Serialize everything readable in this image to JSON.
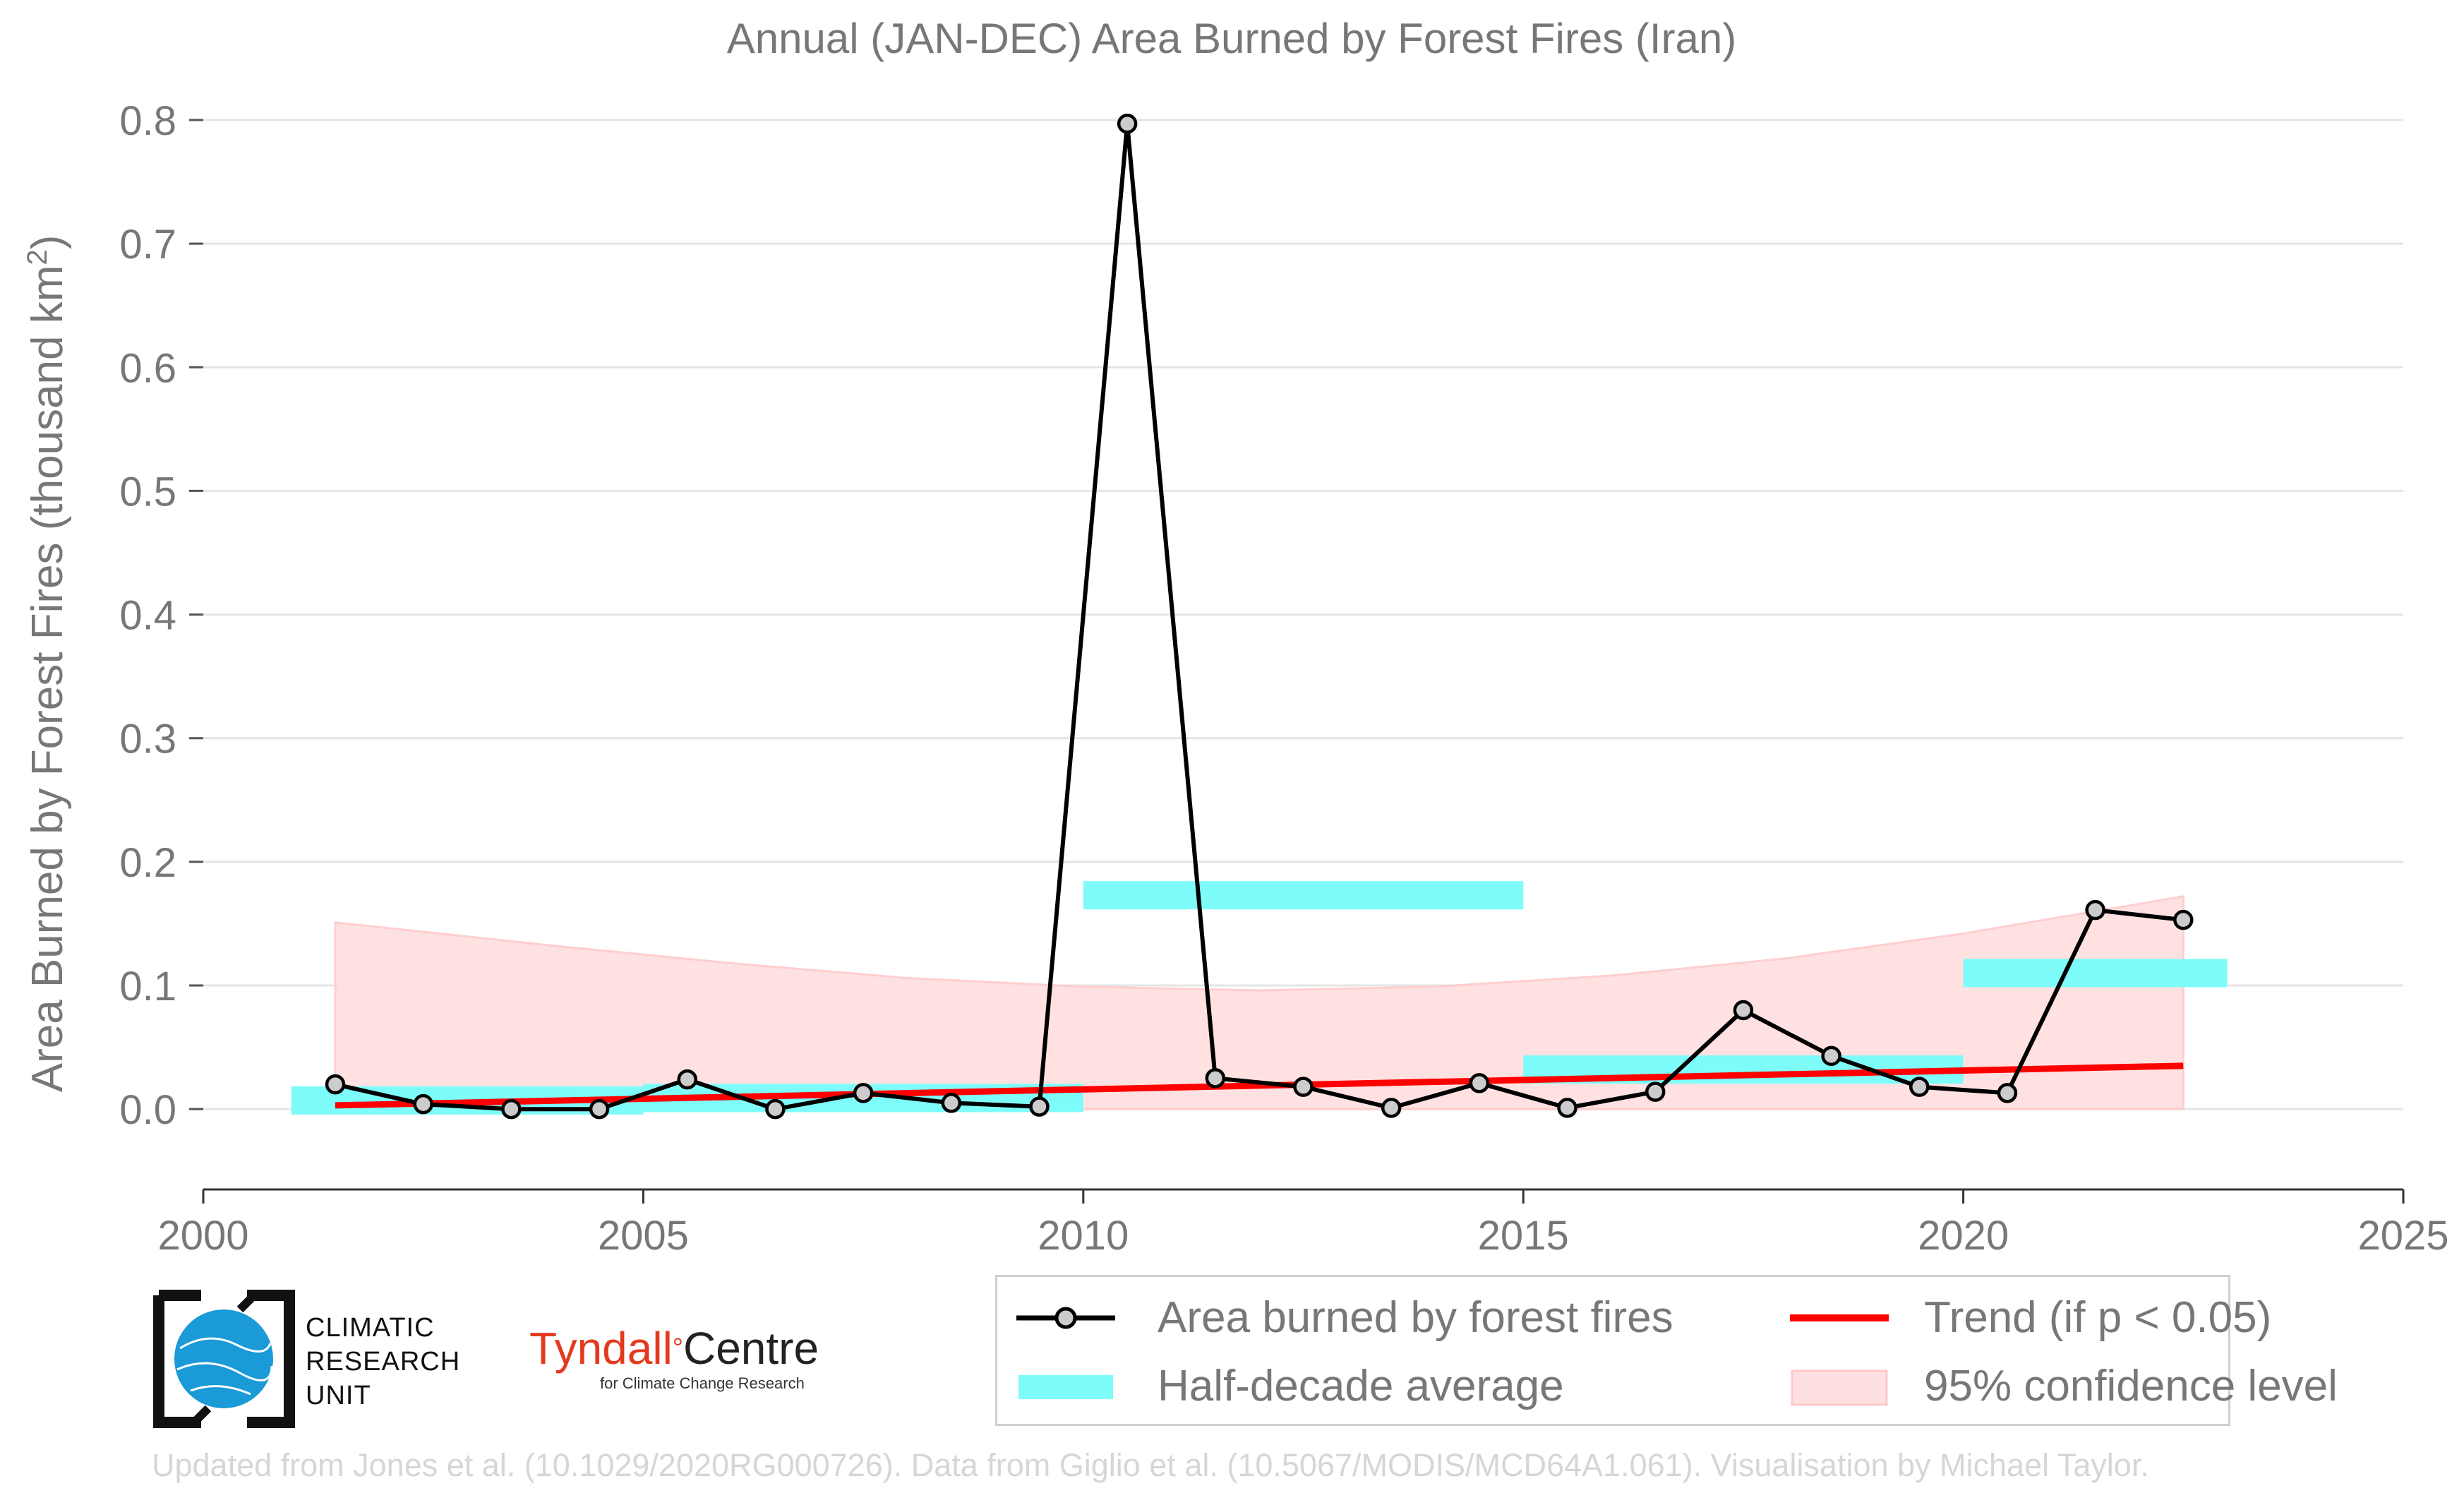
{
  "chart_data": {
    "type": "line",
    "title": "Annual (JAN-DEC) Area Burned by Forest Fires (Iran)",
    "ylabel": "Area Burned by Forest Fires (thousand km²)",
    "xlabel": "",
    "xlim": [
      2000,
      2025
    ],
    "ylim": [
      -0.065,
      0.8
    ],
    "x_ticks": [
      2000,
      2005,
      2010,
      2015,
      2020,
      2025
    ],
    "y_ticks": [
      0.0,
      0.1,
      0.2,
      0.3,
      0.4,
      0.5,
      0.6,
      0.7,
      0.8
    ],
    "grid": "horizontal",
    "series": [
      {
        "name": "Area burned by forest fires",
        "x": [
          2001.5,
          2002.5,
          2003.5,
          2004.5,
          2005.5,
          2006.5,
          2007.5,
          2008.5,
          2009.5,
          2010.5,
          2011.5,
          2012.5,
          2013.5,
          2014.5,
          2015.5,
          2016.5,
          2017.5,
          2018.5,
          2019.5,
          2020.5,
          2021.5,
          2022.5
        ],
        "values": [
          0.02,
          0.004,
          0.0,
          0.0,
          0.024,
          0.0,
          0.013,
          0.005,
          0.002,
          0.797,
          0.025,
          0.018,
          0.001,
          0.021,
          0.001,
          0.014,
          0.08,
          0.043,
          0.018,
          0.013,
          0.161,
          0.153
        ],
        "color": "#000000"
      },
      {
        "name": "Half-decade average",
        "segments": [
          {
            "x0": 2001,
            "x1": 2005,
            "value": 0.007
          },
          {
            "x0": 2005,
            "x1": 2010,
            "value": 0.009
          },
          {
            "x0": 2010,
            "x1": 2015,
            "value": 0.173
          },
          {
            "x0": 2015,
            "x1": 2020,
            "value": 0.032
          },
          {
            "x0": 2020,
            "x1": 2023,
            "value": 0.11
          }
        ],
        "color": "#7dfcfa"
      },
      {
        "name": "Trend (if p < 0.05)",
        "x": [
          2001.5,
          2022.5
        ],
        "values": [
          0.003,
          0.035
        ],
        "color": "#ff0000"
      },
      {
        "name": "95% confidence level",
        "x": [
          2001.5,
          2004,
          2006,
          2008,
          2010,
          2012,
          2014,
          2016,
          2018,
          2020,
          2022.5
        ],
        "upper": [
          0.151,
          0.132,
          0.118,
          0.106,
          0.099,
          0.096,
          0.099,
          0.108,
          0.122,
          0.142,
          0.172
        ],
        "lower": [
          0.0,
          0.0,
          0.0,
          0.0,
          0.0,
          0.0,
          0.0,
          0.0,
          0.0,
          0.0,
          0.0
        ],
        "color": "#ffe0e0"
      }
    ],
    "legend_position": "bottom-right"
  },
  "logos": {
    "cru_lines": [
      "CLIMATIC",
      "RESEARCH",
      "UNIT"
    ],
    "tyndall_name": "Tyndall",
    "tyndall_degree": "°",
    "tyndall_centre": "Centre",
    "tyndall_sub": "for Climate Change Research"
  },
  "credit": "Updated from Jones et al. (10.1029/2020RG000726). Data from Giglio et al. (10.5067/MODIS/MCD64A1.061). Visualisation by Michael Taylor."
}
